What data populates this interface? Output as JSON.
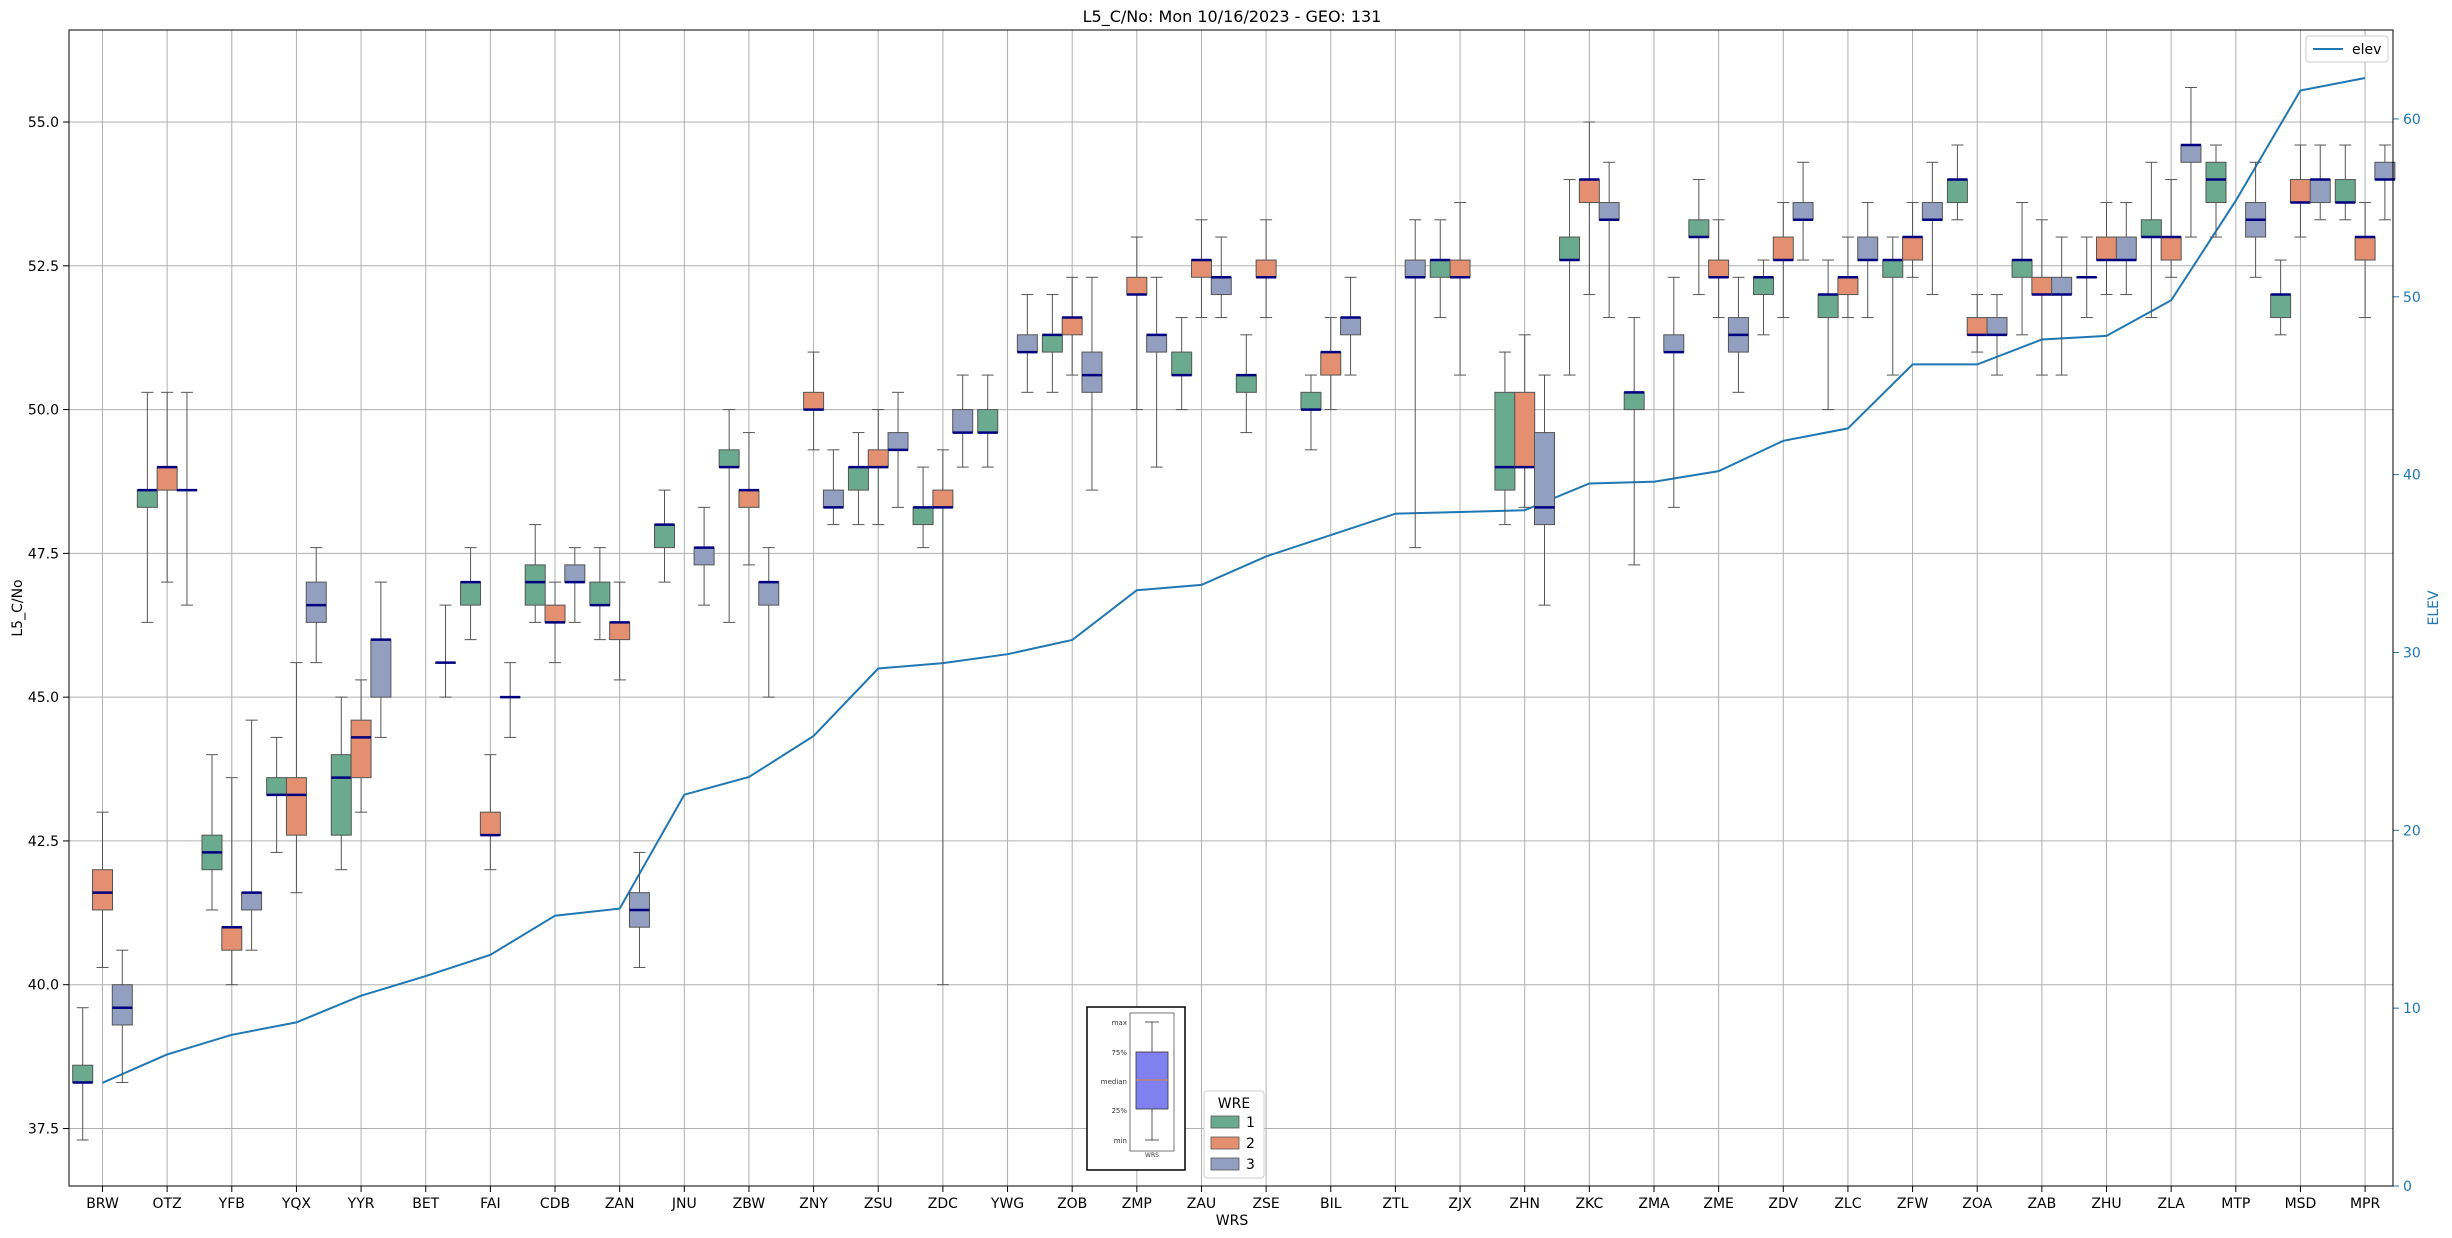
{
  "chart_data": {
    "type": "box",
    "title": "L5_C/No: Mon 10/16/2023 - GEO: 131",
    "xlabel": "WRS",
    "ylabel": "L5_C/No",
    "y2label": "ELEV",
    "ylim": [
      36.5,
      56.6
    ],
    "y2lim": [
      0,
      65
    ],
    "yticks": [
      "37.5",
      "40.0",
      "42.5",
      "45.0",
      "47.5",
      "50.0",
      "52.5",
      "55.0"
    ],
    "y2ticks": [
      "0",
      "10",
      "20",
      "30",
      "40",
      "50",
      "60"
    ],
    "grid": true,
    "categories": [
      "BRW",
      "OTZ",
      "YFB",
      "YQX",
      "YYR",
      "BET",
      "FAI",
      "CDB",
      "ZAN",
      "JNU",
      "ZBW",
      "ZNY",
      "ZSU",
      "ZDC",
      "YWG",
      "ZOB",
      "ZMP",
      "ZAU",
      "ZSE",
      "BIL",
      "ZTL",
      "ZJX",
      "ZHN",
      "ZKC",
      "ZMA",
      "ZME",
      "ZDV",
      "ZLC",
      "ZFW",
      "ZOA",
      "ZAB",
      "ZHU",
      "ZLA",
      "MTP",
      "MSD",
      "MPR"
    ],
    "legend_wre": {
      "title": "WRE",
      "placement": "bottom-center",
      "entries": [
        {
          "label": "1",
          "color": "#6aaa8f"
        },
        {
          "label": "2",
          "color": "#e38f70"
        },
        {
          "label": "3",
          "color": "#929fc0"
        }
      ]
    },
    "legend_line": {
      "label": "elev",
      "color": "#1f77b4",
      "placement": "top-right"
    },
    "key_box_labels": [
      "max",
      "75%",
      "median",
      "25%",
      "min",
      "WRS"
    ],
    "median_color": "#000080",
    "series": [
      {
        "name": "1",
        "color": "#6aaa8f",
        "boxes": [
          {
            "cat": "BRW",
            "min": 37.3,
            "q1": 38.3,
            "median": 38.3,
            "q3": 38.6,
            "max": 39.6
          },
          {
            "cat": "OTZ",
            "min": 46.3,
            "q1": 48.3,
            "median": 48.6,
            "q3": 48.6,
            "max": 50.3
          },
          {
            "cat": "YFB",
            "min": 41.3,
            "q1": 42.0,
            "median": 42.3,
            "q3": 42.6,
            "max": 44.0
          },
          {
            "cat": "YQX",
            "min": 42.3,
            "q1": 43.3,
            "median": 43.3,
            "q3": 43.6,
            "max": 44.3
          },
          {
            "cat": "YYR",
            "min": 42.0,
            "q1": 42.6,
            "median": 43.6,
            "q3": 44.0,
            "max": 45.0
          },
          {
            "cat": "FAI",
            "min": 46.0,
            "q1": 46.6,
            "median": 47.0,
            "q3": 47.0,
            "max": 47.6
          },
          {
            "cat": "CDB",
            "min": 46.3,
            "q1": 46.6,
            "median": 47.0,
            "q3": 47.3,
            "max": 48.0
          },
          {
            "cat": "ZAN",
            "min": 46.0,
            "q1": 46.6,
            "median": 46.6,
            "q3": 47.0,
            "max": 47.6
          },
          {
            "cat": "JNU",
            "min": 47.0,
            "q1": 47.6,
            "median": 48.0,
            "q3": 48.0,
            "max": 48.6
          },
          {
            "cat": "ZBW",
            "min": 46.3,
            "q1": 49.0,
            "median": 49.0,
            "q3": 49.3,
            "max": 50.0
          },
          {
            "cat": "ZSU",
            "min": 48.0,
            "q1": 48.6,
            "median": 49.0,
            "q3": 49.0,
            "max": 49.6
          },
          {
            "cat": "ZDC",
            "min": 47.6,
            "q1": 48.0,
            "median": 48.3,
            "q3": 48.3,
            "max": 49.0
          },
          {
            "cat": "YWG",
            "min": 49.0,
            "q1": 49.6,
            "median": 49.6,
            "q3": 50.0,
            "max": 50.6
          },
          {
            "cat": "ZOB",
            "min": 50.3,
            "q1": 51.0,
            "median": 51.3,
            "q3": 51.3,
            "max": 52.0
          },
          {
            "cat": "ZAU",
            "min": 50.0,
            "q1": 50.6,
            "median": 50.6,
            "q3": 51.0,
            "max": 51.6
          },
          {
            "cat": "ZSE",
            "min": 49.6,
            "q1": 50.3,
            "median": 50.6,
            "q3": 50.6,
            "max": 51.3
          },
          {
            "cat": "BIL",
            "min": 49.3,
            "q1": 50.0,
            "median": 50.0,
            "q3": 50.3,
            "max": 50.6
          },
          {
            "cat": "ZJX",
            "min": 51.6,
            "q1": 52.3,
            "median": 52.6,
            "q3": 52.6,
            "max": 53.3
          },
          {
            "cat": "ZHN",
            "min": 48.0,
            "q1": 48.6,
            "median": 49.0,
            "q3": 50.3,
            "max": 51.0
          },
          {
            "cat": "ZKC",
            "min": 50.6,
            "q1": 52.6,
            "median": 52.6,
            "q3": 53.0,
            "max": 54.0
          },
          {
            "cat": "ZMA",
            "min": 47.3,
            "q1": 50.0,
            "median": 50.3,
            "q3": 50.3,
            "max": 51.6
          },
          {
            "cat": "ZME",
            "min": 52.0,
            "q1": 53.0,
            "median": 53.0,
            "q3": 53.3,
            "max": 54.0
          },
          {
            "cat": "ZDV",
            "min": 51.3,
            "q1": 52.0,
            "median": 52.3,
            "q3": 52.3,
            "max": 52.6
          },
          {
            "cat": "ZLC",
            "min": 50.0,
            "q1": 51.6,
            "median": 52.0,
            "q3": 52.0,
            "max": 52.6
          },
          {
            "cat": "ZFW",
            "min": 50.6,
            "q1": 52.3,
            "median": 52.6,
            "q3": 52.6,
            "max": 53.0
          },
          {
            "cat": "ZOA",
            "min": 53.3,
            "q1": 53.6,
            "median": 54.0,
            "q3": 54.0,
            "max": 54.6
          },
          {
            "cat": "ZAB",
            "min": 51.3,
            "q1": 52.3,
            "median": 52.6,
            "q3": 52.6,
            "max": 53.6
          },
          {
            "cat": "ZHU",
            "min": 51.6,
            "q1": 52.3,
            "median": 52.3,
            "q3": 52.3,
            "max": 53.0
          },
          {
            "cat": "ZLA",
            "min": 51.6,
            "q1": 53.0,
            "median": 53.0,
            "q3": 53.3,
            "max": 54.3
          },
          {
            "cat": "MTP",
            "min": 53.0,
            "q1": 53.6,
            "median": 54.0,
            "q3": 54.3,
            "max": 54.6
          },
          {
            "cat": "MSD",
            "min": 51.3,
            "q1": 51.6,
            "median": 52.0,
            "q3": 52.0,
            "max": 52.6
          },
          {
            "cat": "MPR",
            "min": 53.3,
            "q1": 53.6,
            "median": 53.6,
            "q3": 54.0,
            "max": 54.6
          }
        ]
      },
      {
        "name": "2",
        "color": "#e38f70",
        "boxes": [
          {
            "cat": "BRW",
            "min": 40.3,
            "q1": 41.3,
            "median": 41.6,
            "q3": 42.0,
            "max": 43.0
          },
          {
            "cat": "OTZ",
            "min": 47.0,
            "q1": 48.6,
            "median": 49.0,
            "q3": 49.0,
            "max": 50.3
          },
          {
            "cat": "YFB",
            "min": 40.0,
            "q1": 40.6,
            "median": 41.0,
            "q3": 41.0,
            "max": 43.6
          },
          {
            "cat": "YQX",
            "min": 41.6,
            "q1": 42.6,
            "median": 43.3,
            "q3": 43.6,
            "max": 45.6
          },
          {
            "cat": "YYR",
            "min": 43.0,
            "q1": 43.6,
            "median": 44.3,
            "q3": 44.6,
            "max": 45.3
          },
          {
            "cat": "FAI",
            "min": 42.0,
            "q1": 42.6,
            "median": 42.6,
            "q3": 43.0,
            "max": 44.0
          },
          {
            "cat": "CDB",
            "min": 45.6,
            "q1": 46.3,
            "median": 46.3,
            "q3": 46.6,
            "max": 47.0
          },
          {
            "cat": "ZAN",
            "min": 45.3,
            "q1": 46.0,
            "median": 46.3,
            "q3": 46.3,
            "max": 47.0
          },
          {
            "cat": "ZBW",
            "min": 47.3,
            "q1": 48.3,
            "median": 48.6,
            "q3": 48.6,
            "max": 49.6
          },
          {
            "cat": "ZNY",
            "min": 49.3,
            "q1": 50.0,
            "median": 50.0,
            "q3": 50.3,
            "max": 51.0
          },
          {
            "cat": "ZSU",
            "min": 48.0,
            "q1": 49.0,
            "median": 49.0,
            "q3": 49.3,
            "max": 50.0
          },
          {
            "cat": "ZDC",
            "min": 40.0,
            "q1": 48.3,
            "median": 48.3,
            "q3": 48.6,
            "max": 49.3
          },
          {
            "cat": "ZOB",
            "min": 50.6,
            "q1": 51.3,
            "median": 51.6,
            "q3": 51.6,
            "max": 52.3
          },
          {
            "cat": "ZMP",
            "min": 50.0,
            "q1": 52.0,
            "median": 52.0,
            "q3": 52.3,
            "max": 53.0
          },
          {
            "cat": "ZAU",
            "min": 51.6,
            "q1": 52.3,
            "median": 52.6,
            "q3": 52.6,
            "max": 53.3
          },
          {
            "cat": "ZSE",
            "min": 51.6,
            "q1": 52.3,
            "median": 52.3,
            "q3": 52.6,
            "max": 53.3
          },
          {
            "cat": "BIL",
            "min": 50.0,
            "q1": 50.6,
            "median": 51.0,
            "q3": 51.0,
            "max": 51.6
          },
          {
            "cat": "ZJX",
            "min": 50.6,
            "q1": 52.3,
            "median": 52.3,
            "q3": 52.6,
            "max": 53.6
          },
          {
            "cat": "ZHN",
            "min": 48.3,
            "q1": 49.0,
            "median": 49.0,
            "q3": 50.3,
            "max": 51.3
          },
          {
            "cat": "ZKC",
            "min": 52.0,
            "q1": 53.6,
            "median": 54.0,
            "q3": 54.0,
            "max": 55.0
          },
          {
            "cat": "ZME",
            "min": 51.6,
            "q1": 52.3,
            "median": 52.3,
            "q3": 52.6,
            "max": 53.3
          },
          {
            "cat": "ZDV",
            "min": 51.6,
            "q1": 52.6,
            "median": 52.6,
            "q3": 53.0,
            "max": 53.6
          },
          {
            "cat": "ZLC",
            "min": 51.6,
            "q1": 52.0,
            "median": 52.3,
            "q3": 52.3,
            "max": 53.0
          },
          {
            "cat": "ZFW",
            "min": 52.3,
            "q1": 52.6,
            "median": 53.0,
            "q3": 53.0,
            "max": 53.6
          },
          {
            "cat": "ZOA",
            "min": 51.0,
            "q1": 51.3,
            "median": 51.3,
            "q3": 51.6,
            "max": 52.0
          },
          {
            "cat": "ZAB",
            "min": 50.6,
            "q1": 52.0,
            "median": 52.0,
            "q3": 52.3,
            "max": 53.3
          },
          {
            "cat": "ZHU",
            "min": 52.0,
            "q1": 52.6,
            "median": 52.6,
            "q3": 53.0,
            "max": 53.6
          },
          {
            "cat": "ZLA",
            "min": 52.3,
            "q1": 52.6,
            "median": 53.0,
            "q3": 53.0,
            "max": 54.0
          },
          {
            "cat": "MSD",
            "min": 53.0,
            "q1": 53.6,
            "median": 53.6,
            "q3": 54.0,
            "max": 54.6
          },
          {
            "cat": "MPR",
            "min": 51.6,
            "q1": 52.6,
            "median": 53.0,
            "q3": 53.0,
            "max": 53.6
          }
        ]
      },
      {
        "name": "3",
        "color": "#929fc0",
        "boxes": [
          {
            "cat": "BRW",
            "min": 38.3,
            "q1": 39.3,
            "median": 39.6,
            "q3": 40.0,
            "max": 40.6
          },
          {
            "cat": "OTZ",
            "min": 46.6,
            "q1": 48.6,
            "median": 48.6,
            "q3": 48.6,
            "max": 50.3
          },
          {
            "cat": "YFB",
            "min": 40.6,
            "q1": 41.3,
            "median": 41.6,
            "q3": 41.6,
            "max": 44.6
          },
          {
            "cat": "YQX",
            "min": 45.6,
            "q1": 46.3,
            "median": 46.6,
            "q3": 47.0,
            "max": 47.6
          },
          {
            "cat": "YYR",
            "min": 44.3,
            "q1": 45.0,
            "median": 46.0,
            "q3": 46.0,
            "max": 47.0
          },
          {
            "cat": "BET",
            "min": 45.0,
            "q1": 45.6,
            "median": 45.6,
            "q3": 45.6,
            "max": 46.6
          },
          {
            "cat": "FAI",
            "min": 44.3,
            "q1": 45.0,
            "median": 45.0,
            "q3": 45.0,
            "max": 45.6
          },
          {
            "cat": "CDB",
            "min": 46.3,
            "q1": 47.0,
            "median": 47.0,
            "q3": 47.3,
            "max": 47.6
          },
          {
            "cat": "ZAN",
            "min": 40.3,
            "q1": 41.0,
            "median": 41.3,
            "q3": 41.6,
            "max": 42.3
          },
          {
            "cat": "JNU",
            "min": 46.6,
            "q1": 47.3,
            "median": 47.6,
            "q3": 47.6,
            "max": 48.3
          },
          {
            "cat": "ZBW",
            "min": 45.0,
            "q1": 46.6,
            "median": 47.0,
            "q3": 47.0,
            "max": 47.6
          },
          {
            "cat": "ZNY",
            "min": 48.0,
            "q1": 48.3,
            "median": 48.3,
            "q3": 48.6,
            "max": 49.3
          },
          {
            "cat": "ZSU",
            "min": 48.3,
            "q1": 49.3,
            "median": 49.3,
            "q3": 49.6,
            "max": 50.3
          },
          {
            "cat": "ZDC",
            "min": 49.0,
            "q1": 49.6,
            "median": 49.6,
            "q3": 50.0,
            "max": 50.6
          },
          {
            "cat": "YWG",
            "min": 50.3,
            "q1": 51.0,
            "median": 51.0,
            "q3": 51.3,
            "max": 52.0
          },
          {
            "cat": "ZOB",
            "min": 48.6,
            "q1": 50.3,
            "median": 50.6,
            "q3": 51.0,
            "max": 52.3
          },
          {
            "cat": "ZMP",
            "min": 49.0,
            "q1": 51.0,
            "median": 51.3,
            "q3": 51.3,
            "max": 52.3
          },
          {
            "cat": "ZAU",
            "min": 51.6,
            "q1": 52.0,
            "median": 52.3,
            "q3": 52.3,
            "max": 53.0
          },
          {
            "cat": "BIL",
            "min": 50.6,
            "q1": 51.3,
            "median": 51.6,
            "q3": 51.6,
            "max": 52.3
          },
          {
            "cat": "ZTL",
            "min": 47.6,
            "q1": 52.3,
            "median": 52.3,
            "q3": 52.6,
            "max": 53.3
          },
          {
            "cat": "ZHN",
            "min": 46.6,
            "q1": 48.0,
            "median": 48.3,
            "q3": 49.6,
            "max": 50.6
          },
          {
            "cat": "ZKC",
            "min": 51.6,
            "q1": 53.3,
            "median": 53.3,
            "q3": 53.6,
            "max": 54.3
          },
          {
            "cat": "ZMA",
            "min": 48.3,
            "q1": 51.0,
            "median": 51.0,
            "q3": 51.3,
            "max": 52.3
          },
          {
            "cat": "ZME",
            "min": 50.3,
            "q1": 51.0,
            "median": 51.3,
            "q3": 51.6,
            "max": 52.3
          },
          {
            "cat": "ZDV",
            "min": 52.6,
            "q1": 53.3,
            "median": 53.3,
            "q3": 53.6,
            "max": 54.3
          },
          {
            "cat": "ZLC",
            "min": 51.6,
            "q1": 52.6,
            "median": 52.6,
            "q3": 53.0,
            "max": 53.6
          },
          {
            "cat": "ZFW",
            "min": 52.0,
            "q1": 53.3,
            "median": 53.3,
            "q3": 53.6,
            "max": 54.3
          },
          {
            "cat": "ZOA",
            "min": 50.6,
            "q1": 51.3,
            "median": 51.3,
            "q3": 51.6,
            "max": 52.0
          },
          {
            "cat": "ZAB",
            "min": 50.6,
            "q1": 52.0,
            "median": 52.0,
            "q3": 52.3,
            "max": 53.0
          },
          {
            "cat": "ZHU",
            "min": 52.0,
            "q1": 52.6,
            "median": 52.6,
            "q3": 53.0,
            "max": 53.6
          },
          {
            "cat": "ZLA",
            "min": 53.0,
            "q1": 54.3,
            "median": 54.6,
            "q3": 54.6,
            "max": 55.6
          },
          {
            "cat": "MTP",
            "min": 52.3,
            "q1": 53.0,
            "median": 53.3,
            "q3": 53.6,
            "max": 54.3
          },
          {
            "cat": "MSD",
            "min": 53.3,
            "q1": 53.6,
            "median": 54.0,
            "q3": 54.0,
            "max": 54.6
          },
          {
            "cat": "MPR",
            "min": 53.3,
            "q1": 54.0,
            "median": 54.0,
            "q3": 54.3,
            "max": 54.6
          }
        ]
      }
    ],
    "lines": [
      {
        "name": "elev",
        "color": "#1f77b4",
        "axis": "y2",
        "values": [
          5.8,
          7.4,
          8.5,
          9.2,
          10.7,
          11.8,
          13.0,
          15.2,
          15.6,
          22.0,
          23.0,
          25.3,
          29.1,
          29.4,
          29.9,
          30.7,
          33.5,
          33.8,
          35.4,
          36.6,
          37.8,
          37.9,
          38.0,
          39.5,
          39.6,
          40.2,
          41.9,
          42.6,
          46.2,
          46.2,
          47.6,
          47.8,
          49.8,
          55.4,
          61.6,
          62.3
        ]
      }
    ]
  }
}
